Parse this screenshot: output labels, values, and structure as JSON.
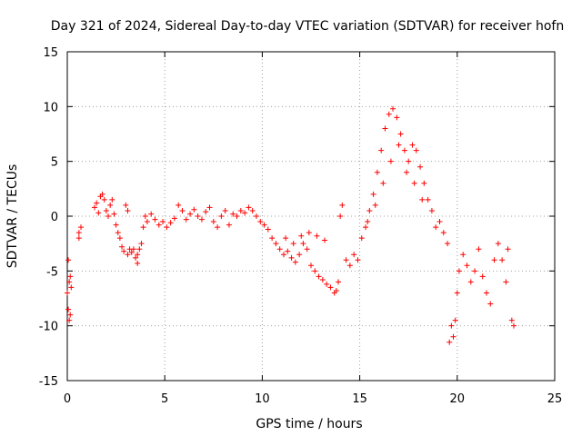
{
  "chart_data": {
    "type": "scatter",
    "title": "Day 321 of 2024, Sidereal Day-to-day VTEC variation (SDTVAR) for receiver hofn",
    "xlabel": "GPS time / hours",
    "ylabel": "SDTVAR / TECUs",
    "xlim": [
      0,
      25
    ],
    "ylim": [
      -15,
      15
    ],
    "x_ticks": [
      0,
      5,
      10,
      15,
      20,
      25
    ],
    "y_ticks": [
      -15,
      -10,
      -5,
      0,
      5,
      10,
      15
    ],
    "x_tick_labels": [
      "0",
      "5",
      "10",
      "15",
      "20",
      "25"
    ],
    "y_tick_labels": [
      "-15",
      "-10",
      "-5",
      "0",
      "5",
      "10",
      "15"
    ],
    "grid": true,
    "marker": "+",
    "series_color": "#ff0000",
    "series": [
      {
        "name": "SDTVAR",
        "points": [
          [
            0.0,
            -7.0
          ],
          [
            0.05,
            -8.5
          ],
          [
            0.05,
            -4.0
          ],
          [
            0.1,
            -9.5
          ],
          [
            0.1,
            -6.0
          ],
          [
            0.15,
            -5.5
          ],
          [
            0.15,
            -9.0
          ],
          [
            0.2,
            -6.5
          ],
          [
            0.6,
            -2.0
          ],
          [
            0.6,
            -1.5
          ],
          [
            0.7,
            -1.0
          ],
          [
            1.4,
            0.8
          ],
          [
            1.5,
            1.2
          ],
          [
            1.6,
            0.3
          ],
          [
            1.7,
            1.8
          ],
          [
            1.8,
            2.0
          ],
          [
            1.9,
            1.5
          ],
          [
            2.0,
            0.5
          ],
          [
            2.1,
            0.0
          ],
          [
            2.2,
            1.0
          ],
          [
            2.3,
            1.5
          ],
          [
            2.4,
            0.2
          ],
          [
            2.5,
            -0.8
          ],
          [
            2.6,
            -1.5
          ],
          [
            2.7,
            -2.0
          ],
          [
            2.8,
            -2.8
          ],
          [
            2.9,
            -3.2
          ],
          [
            3.0,
            1.0
          ],
          [
            3.1,
            0.5
          ],
          [
            3.1,
            -3.5
          ],
          [
            3.2,
            -3.0
          ],
          [
            3.3,
            -3.3
          ],
          [
            3.4,
            -3.0
          ],
          [
            3.5,
            -3.8
          ],
          [
            3.6,
            -3.5
          ],
          [
            3.6,
            -4.3
          ],
          [
            3.7,
            -3.0
          ],
          [
            3.8,
            -2.5
          ],
          [
            3.9,
            -1.0
          ],
          [
            4.0,
            0.0
          ],
          [
            4.1,
            -0.5
          ],
          [
            4.3,
            0.2
          ],
          [
            4.5,
            -0.3
          ],
          [
            4.7,
            -0.8
          ],
          [
            4.9,
            -0.5
          ],
          [
            5.1,
            -1.0
          ],
          [
            5.3,
            -0.6
          ],
          [
            5.5,
            -0.2
          ],
          [
            5.7,
            1.0
          ],
          [
            5.9,
            0.5
          ],
          [
            6.1,
            -0.3
          ],
          [
            6.3,
            0.2
          ],
          [
            6.5,
            0.6
          ],
          [
            6.7,
            0.0
          ],
          [
            6.9,
            -0.3
          ],
          [
            7.1,
            0.4
          ],
          [
            7.3,
            0.8
          ],
          [
            7.5,
            -0.5
          ],
          [
            7.7,
            -1.0
          ],
          [
            7.9,
            0.0
          ],
          [
            8.1,
            0.5
          ],
          [
            8.3,
            -0.8
          ],
          [
            8.5,
            0.2
          ],
          [
            8.7,
            0.0
          ],
          [
            8.9,
            0.5
          ],
          [
            9.1,
            0.3
          ],
          [
            9.3,
            0.8
          ],
          [
            9.5,
            0.5
          ],
          [
            9.7,
            0.0
          ],
          [
            9.9,
            -0.5
          ],
          [
            10.1,
            -0.8
          ],
          [
            10.3,
            -1.2
          ],
          [
            10.5,
            -2.0
          ],
          [
            10.7,
            -2.5
          ],
          [
            10.9,
            -3.0
          ],
          [
            11.1,
            -3.5
          ],
          [
            11.3,
            -3.2
          ],
          [
            11.5,
            -3.8
          ],
          [
            11.7,
            -4.2
          ],
          [
            11.9,
            -3.5
          ],
          [
            12.1,
            -2.5
          ],
          [
            12.3,
            -3.0
          ],
          [
            12.5,
            -4.5
          ],
          [
            12.7,
            -5.0
          ],
          [
            12.9,
            -5.5
          ],
          [
            13.1,
            -5.8
          ],
          [
            13.3,
            -6.2
          ],
          [
            13.5,
            -6.5
          ],
          [
            13.7,
            -7.0
          ],
          [
            13.8,
            -6.8
          ],
          [
            13.9,
            -6.0
          ],
          [
            14.0,
            0.0
          ],
          [
            14.1,
            1.0
          ],
          [
            14.3,
            -4.0
          ],
          [
            14.5,
            -4.5
          ],
          [
            14.7,
            -3.5
          ],
          [
            14.9,
            -4.0
          ],
          [
            11.2,
            -2.0
          ],
          [
            11.6,
            -2.5
          ],
          [
            12.0,
            -1.8
          ],
          [
            12.4,
            -1.5
          ],
          [
            12.8,
            -1.8
          ],
          [
            13.2,
            -2.2
          ],
          [
            15.1,
            -2.0
          ],
          [
            15.3,
            -1.0
          ],
          [
            15.5,
            0.5
          ],
          [
            15.7,
            2.0
          ],
          [
            15.9,
            4.0
          ],
          [
            16.1,
            6.0
          ],
          [
            16.3,
            8.0
          ],
          [
            16.5,
            9.3
          ],
          [
            16.7,
            9.8
          ],
          [
            16.9,
            9.0
          ],
          [
            17.1,
            7.5
          ],
          [
            17.3,
            6.0
          ],
          [
            17.5,
            5.0
          ],
          [
            17.7,
            6.5
          ],
          [
            17.9,
            6.0
          ],
          [
            18.1,
            4.5
          ],
          [
            18.3,
            3.0
          ],
          [
            18.5,
            1.5
          ],
          [
            18.7,
            0.5
          ],
          [
            18.9,
            -1.0
          ],
          [
            19.1,
            -0.5
          ],
          [
            19.3,
            -1.5
          ],
          [
            19.5,
            -2.5
          ],
          [
            15.4,
            -0.5
          ],
          [
            15.8,
            1.0
          ],
          [
            16.2,
            3.0
          ],
          [
            16.6,
            5.0
          ],
          [
            17.0,
            6.5
          ],
          [
            17.4,
            4.0
          ],
          [
            17.8,
            3.0
          ],
          [
            18.2,
            1.5
          ],
          [
            19.6,
            -11.5
          ],
          [
            19.7,
            -10.0
          ],
          [
            19.8,
            -11.0
          ],
          [
            19.9,
            -9.5
          ],
          [
            20.0,
            -7.0
          ],
          [
            20.1,
            -5.0
          ],
          [
            20.3,
            -3.5
          ],
          [
            20.5,
            -4.5
          ],
          [
            20.7,
            -6.0
          ],
          [
            20.9,
            -5.0
          ],
          [
            21.1,
            -3.0
          ],
          [
            21.3,
            -5.5
          ],
          [
            21.5,
            -7.0
          ],
          [
            21.7,
            -8.0
          ],
          [
            21.9,
            -4.0
          ],
          [
            22.1,
            -2.5
          ],
          [
            22.3,
            -4.0
          ],
          [
            22.5,
            -6.0
          ],
          [
            22.6,
            -3.0
          ],
          [
            22.8,
            -9.5
          ],
          [
            22.9,
            -10.0
          ]
        ]
      }
    ]
  }
}
